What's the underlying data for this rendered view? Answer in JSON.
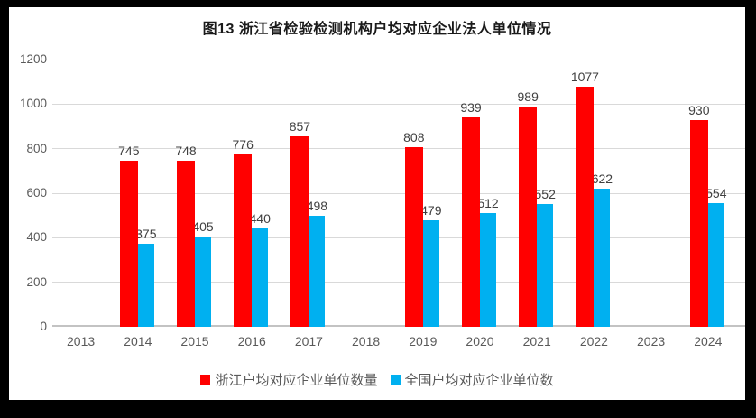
{
  "window": {
    "frame_color": "#000000",
    "background_color": "#ffffff"
  },
  "chart_data": {
    "type": "bar",
    "title": "图13 浙江省检验检测机构户均对应企业法人单位情况",
    "categories": [
      "2013",
      "2014",
      "2015",
      "2016",
      "2017",
      "2018",
      "2019",
      "2020",
      "2021",
      "2022",
      "2023",
      "2024"
    ],
    "series": [
      {
        "name": "浙江户均对应企业单位数量",
        "slug": "zhejiang",
        "color": "#ff0000",
        "values": [
          null,
          745,
          748,
          776,
          857,
          null,
          808,
          939,
          989,
          1077,
          null,
          930
        ]
      },
      {
        "name": "全国户均对应企业单位数",
        "slug": "national",
        "color": "#00b0f0",
        "values": [
          null,
          375,
          405,
          440,
          498,
          null,
          479,
          512,
          552,
          622,
          null,
          554
        ]
      }
    ],
    "ylim": [
      0,
      1200
    ],
    "ytick_step": 200,
    "grid": true,
    "legend_position": "bottom",
    "data_labels": true
  }
}
